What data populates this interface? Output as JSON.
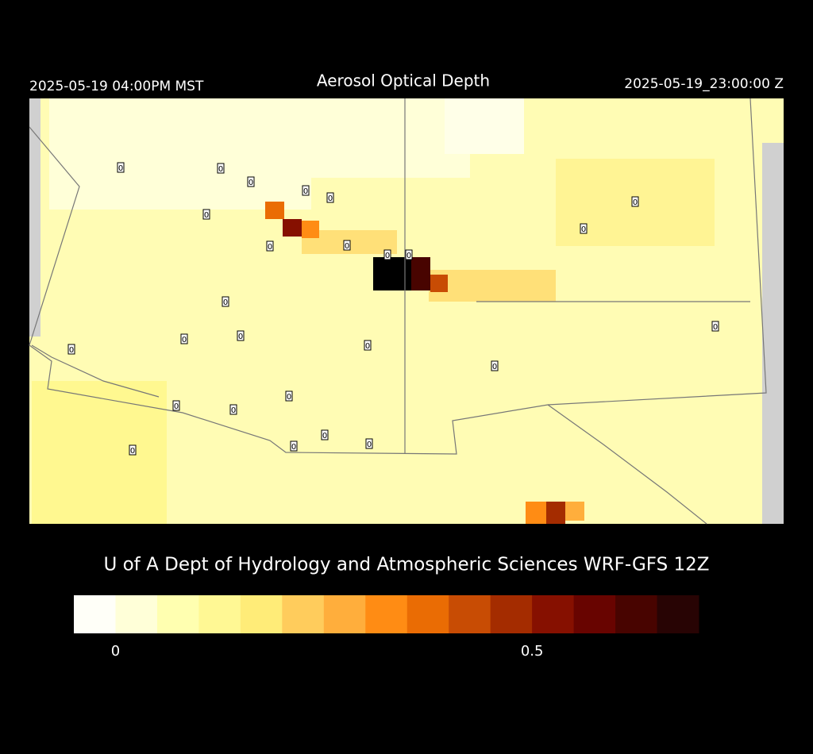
{
  "header": {
    "title": "Aerosol Optical Depth",
    "local_time": "2025-05-19 04:00PM MST",
    "utc_time": "2025-05-19_23:00:00 Z"
  },
  "footer": {
    "credit": "U of A Dept of Hydrology and Atmospheric Sciences WRF-GFS 12Z"
  },
  "colorbar": {
    "colors": [
      "#fffff8",
      "#ffffd8",
      "#ffffb0",
      "#fff894",
      "#ffec78",
      "#ffcc5c",
      "#ffae3c",
      "#ff8c14",
      "#ea6c04",
      "#c84c04",
      "#a42c00",
      "#861000",
      "#680400",
      "#480400",
      "#280404"
    ],
    "tick_labels": [
      "0",
      "0.5"
    ]
  },
  "stations": [
    "0",
    "0",
    "0",
    "0",
    "0",
    "0",
    "0",
    "0",
    "0",
    "0",
    "0",
    "0",
    "0",
    "0",
    "0",
    "0",
    "0",
    "0",
    "0",
    "0",
    "0",
    "0",
    "0",
    "0",
    "0",
    "0"
  ]
}
